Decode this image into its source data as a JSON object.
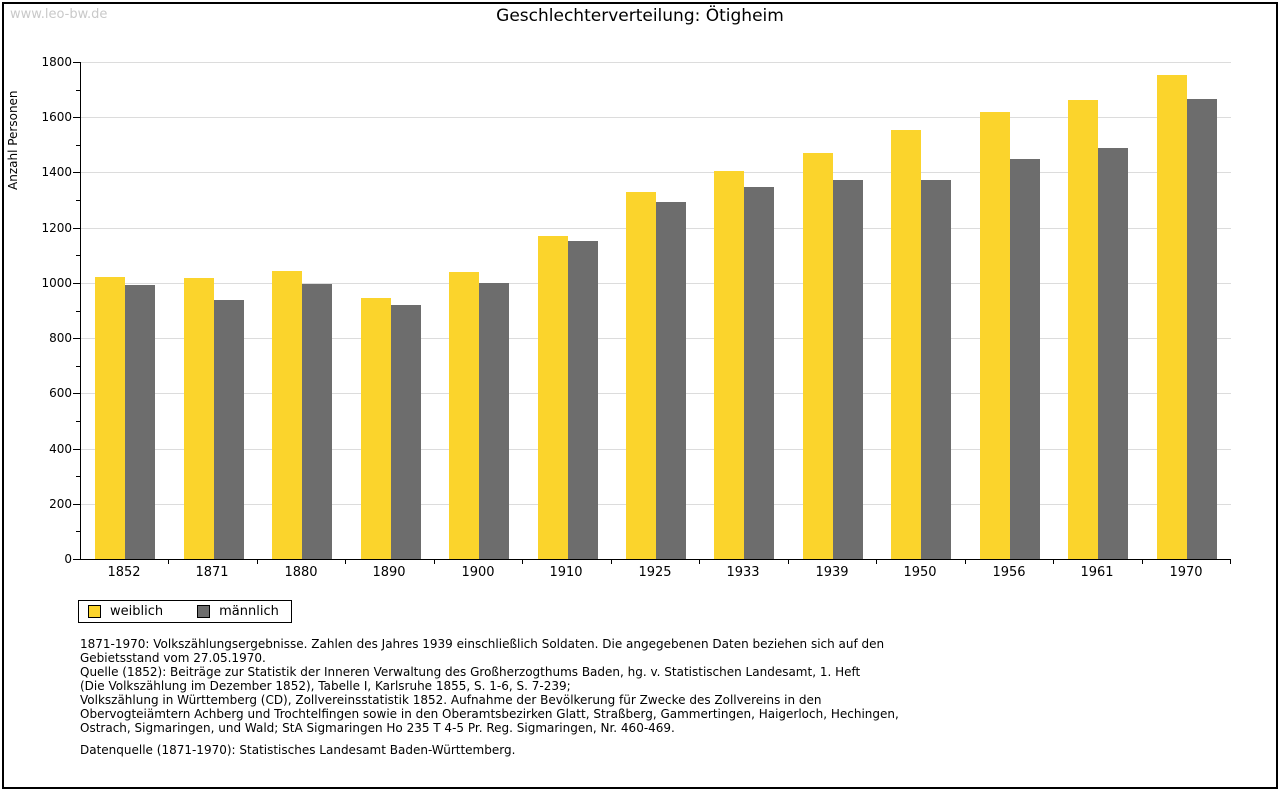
{
  "page": {
    "watermark": "www.leo-bw.de"
  },
  "chart_data": {
    "type": "bar",
    "title": "Geschlechterverteilung: Ötigheim",
    "xlabel": "",
    "ylabel": "Anzahl Personen",
    "categories": [
      "1852",
      "1871",
      "1880",
      "1890",
      "1900",
      "1910",
      "1925",
      "1933",
      "1939",
      "1950",
      "1956",
      "1961",
      "1970"
    ],
    "series": [
      {
        "name": "weiblich",
        "color": "#fbd42c",
        "values": [
          1020,
          1018,
          1043,
          945,
          1038,
          1170,
          1330,
          1405,
          1470,
          1553,
          1620,
          1662,
          1754
        ]
      },
      {
        "name": "männlich",
        "color": "#6d6d6d",
        "values": [
          993,
          937,
          997,
          920,
          1000,
          1150,
          1294,
          1347,
          1374,
          1374,
          1448,
          1489,
          1667
        ]
      }
    ],
    "ylim": [
      0,
      1800
    ],
    "ytick_step": 200,
    "grid": true,
    "gridline_color": "#dcdcdc",
    "legend_position": "bottom-left"
  },
  "footnotes": {
    "lines": [
      "1871-1970: Volkszählungsergebnisse. Zahlen des Jahres 1939 einschließlich Soldaten. Die angegebenen Daten beziehen sich auf den",
      "Gebietsstand vom 27.05.1970.",
      "Quelle (1852): Beiträge zur Statistik der Inneren Verwaltung des Großherzogthums Baden, hg. v. Statistischen Landesamt, 1. Heft",
      "(Die Volkszählung im Dezember 1852), Tabelle I, Karlsruhe 1855, S. 1-6, S. 7-239;",
      "Volkszählung in Württemberg (CD), Zollvereinsstatistik 1852. Aufnahme der Bevölkerung für Zwecke des Zollvereins in den",
      "Obervogteiämtern Achberg und Trochtelfingen sowie in den Oberamtsbezirken Glatt, Straßberg, Gammertingen, Haigerloch, Hechingen,",
      "Ostrach, Sigmaringen, und Wald; StA Sigmaringen Ho 235 T 4-5 Pr. Reg. Sigmaringen, Nr. 460-469."
    ],
    "datasource": "Datenquelle (1871-1970): Statistisches Landesamt Baden-Württemberg."
  }
}
